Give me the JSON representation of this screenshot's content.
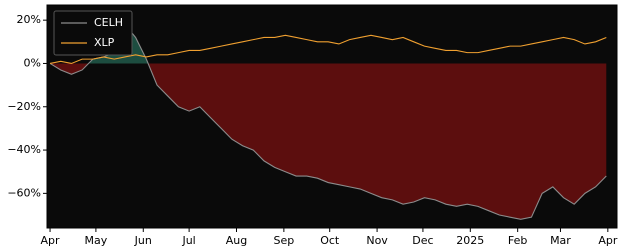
{
  "chart_data": {
    "type": "line",
    "x": [
      0,
      7,
      14,
      21,
      28,
      35,
      42,
      49,
      56,
      63,
      70,
      77,
      84,
      91,
      98,
      105,
      112,
      119,
      126,
      133,
      140,
      147,
      154,
      161,
      168,
      175,
      182,
      189,
      196,
      203,
      210,
      217,
      224,
      231,
      238,
      245,
      252,
      259,
      266,
      273,
      280,
      287,
      294,
      301,
      308,
      315,
      322,
      329,
      336,
      343,
      350,
      357,
      364
    ],
    "series": [
      {
        "name": "CELH",
        "color": "#8c8c8c",
        "values": [
          0,
          -3,
          -5,
          -3,
          2,
          3,
          5,
          18,
          12,
          2,
          -10,
          -15,
          -20,
          -22,
          -20,
          -25,
          -30,
          -35,
          -38,
          -40,
          -45,
          -48,
          -50,
          -52,
          -52,
          -53,
          -55,
          -56,
          -57,
          -58,
          -60,
          -62,
          -63,
          -65,
          -64,
          -62,
          -63,
          -65,
          -66,
          -65,
          -66,
          -68,
          -70,
          -71,
          -72,
          -71,
          -60,
          -57,
          -62,
          -65,
          -60,
          -57,
          -52
        ]
      },
      {
        "name": "XLP",
        "color": "#f0a030",
        "values": [
          0,
          1,
          0,
          2,
          2,
          3,
          2,
          3,
          4,
          3,
          4,
          4,
          5,
          6,
          6,
          7,
          8,
          9,
          10,
          11,
          12,
          12,
          13,
          12,
          11,
          10,
          10,
          9,
          11,
          12,
          13,
          12,
          11,
          12,
          10,
          8,
          7,
          6,
          6,
          5,
          5,
          6,
          7,
          8,
          8,
          9,
          10,
          11,
          12,
          11,
          9,
          10,
          12
        ]
      }
    ],
    "fill_positive": "#1d4d40",
    "fill_negative": "#5c0e0e",
    "background": "#0a0a0a",
    "xlim": [
      -2,
      371
    ],
    "xticks": [
      {
        "value": 0,
        "label": "Apr"
      },
      {
        "value": 30,
        "label": "May"
      },
      {
        "value": 61,
        "label": "Jun"
      },
      {
        "value": 91,
        "label": "Jul"
      },
      {
        "value": 122,
        "label": "Aug"
      },
      {
        "value": 153,
        "label": "Sep"
      },
      {
        "value": 183,
        "label": "Oct"
      },
      {
        "value": 214,
        "label": "Nov"
      },
      {
        "value": 244,
        "label": "Dec"
      },
      {
        "value": 275,
        "label": "2025"
      },
      {
        "value": 306,
        "label": "Feb"
      },
      {
        "value": 334,
        "label": "Mar"
      },
      {
        "value": 365,
        "label": "Apr"
      }
    ],
    "ylim": [
      -76,
      27
    ],
    "yticks": [
      {
        "value": 20,
        "label": "20%"
      },
      {
        "value": 0,
        "label": "0%"
      },
      {
        "value": -20,
        "label": "−20%"
      },
      {
        "value": -40,
        "label": "−40%"
      },
      {
        "value": -60,
        "label": "−60%"
      }
    ],
    "legend": "upper-left",
    "grid": false
  }
}
